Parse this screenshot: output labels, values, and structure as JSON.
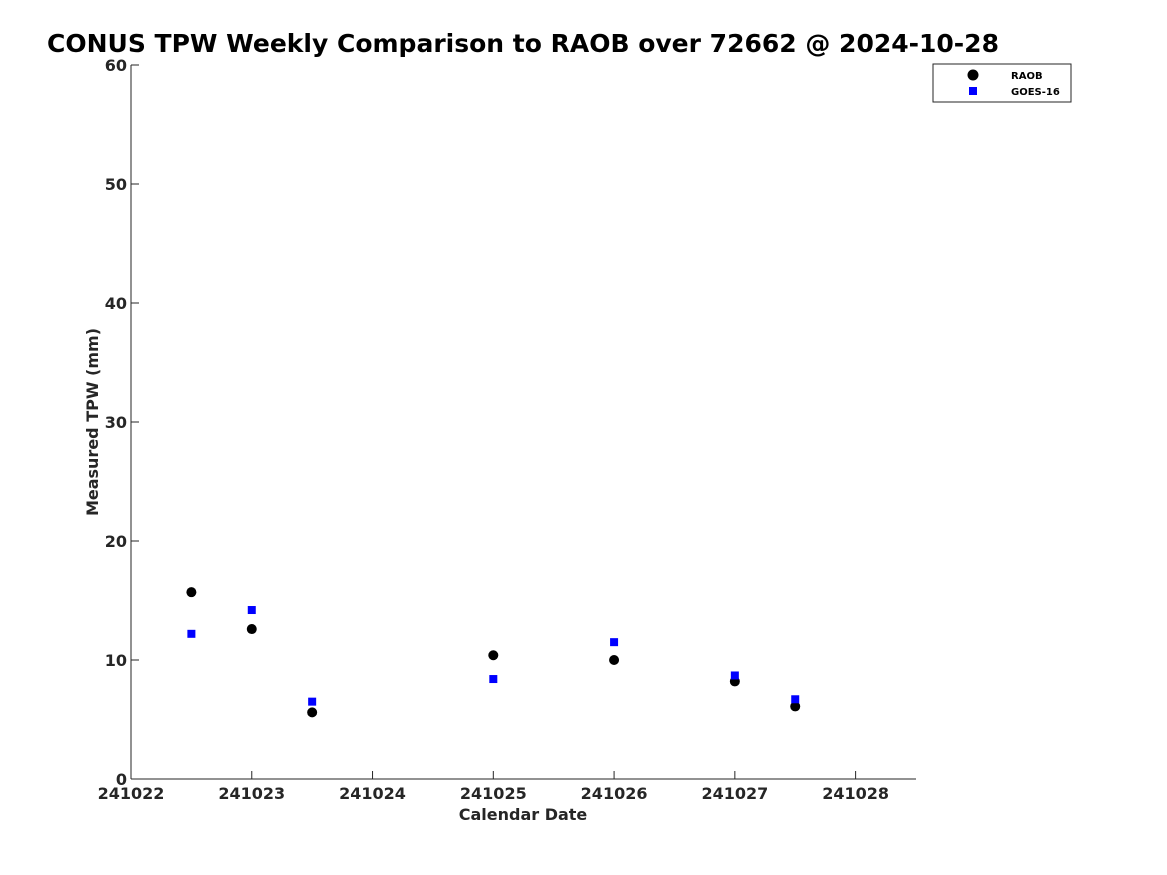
{
  "chart_data": {
    "type": "scatter",
    "title": "CONUS TPW Weekly Comparison to RAOB over 72662 @ 2024-10-28",
    "xlabel": "Calendar Date",
    "ylabel": "Measured TPW (mm)",
    "x_tick_labels": [
      "241022",
      "241023",
      "241024",
      "241025",
      "241026",
      "241027",
      "241028"
    ],
    "xlim": [
      241022,
      241028.5
    ],
    "ylim": [
      0,
      60
    ],
    "y_ticks": [
      0,
      10,
      20,
      30,
      40,
      50,
      60
    ],
    "grid": false,
    "legend_position": "top-right",
    "series": [
      {
        "name": "RAOB",
        "marker": "circle",
        "color": "#000000",
        "points": [
          {
            "x": 241022.5,
            "y": 15.7
          },
          {
            "x": 241023.0,
            "y": 12.6
          },
          {
            "x": 241023.5,
            "y": 5.6
          },
          {
            "x": 241025.0,
            "y": 10.4
          },
          {
            "x": 241026.0,
            "y": 10.0
          },
          {
            "x": 241027.0,
            "y": 8.2
          },
          {
            "x": 241027.5,
            "y": 6.1
          }
        ]
      },
      {
        "name": "GOES-16",
        "marker": "square",
        "color": "#0000ff",
        "points": [
          {
            "x": 241022.5,
            "y": 12.2
          },
          {
            "x": 241023.0,
            "y": 14.2
          },
          {
            "x": 241023.5,
            "y": 6.5
          },
          {
            "x": 241025.0,
            "y": 8.4
          },
          {
            "x": 241026.0,
            "y": 11.5
          },
          {
            "x": 241027.0,
            "y": 8.7
          },
          {
            "x": 241027.5,
            "y": 6.7
          }
        ]
      }
    ]
  }
}
